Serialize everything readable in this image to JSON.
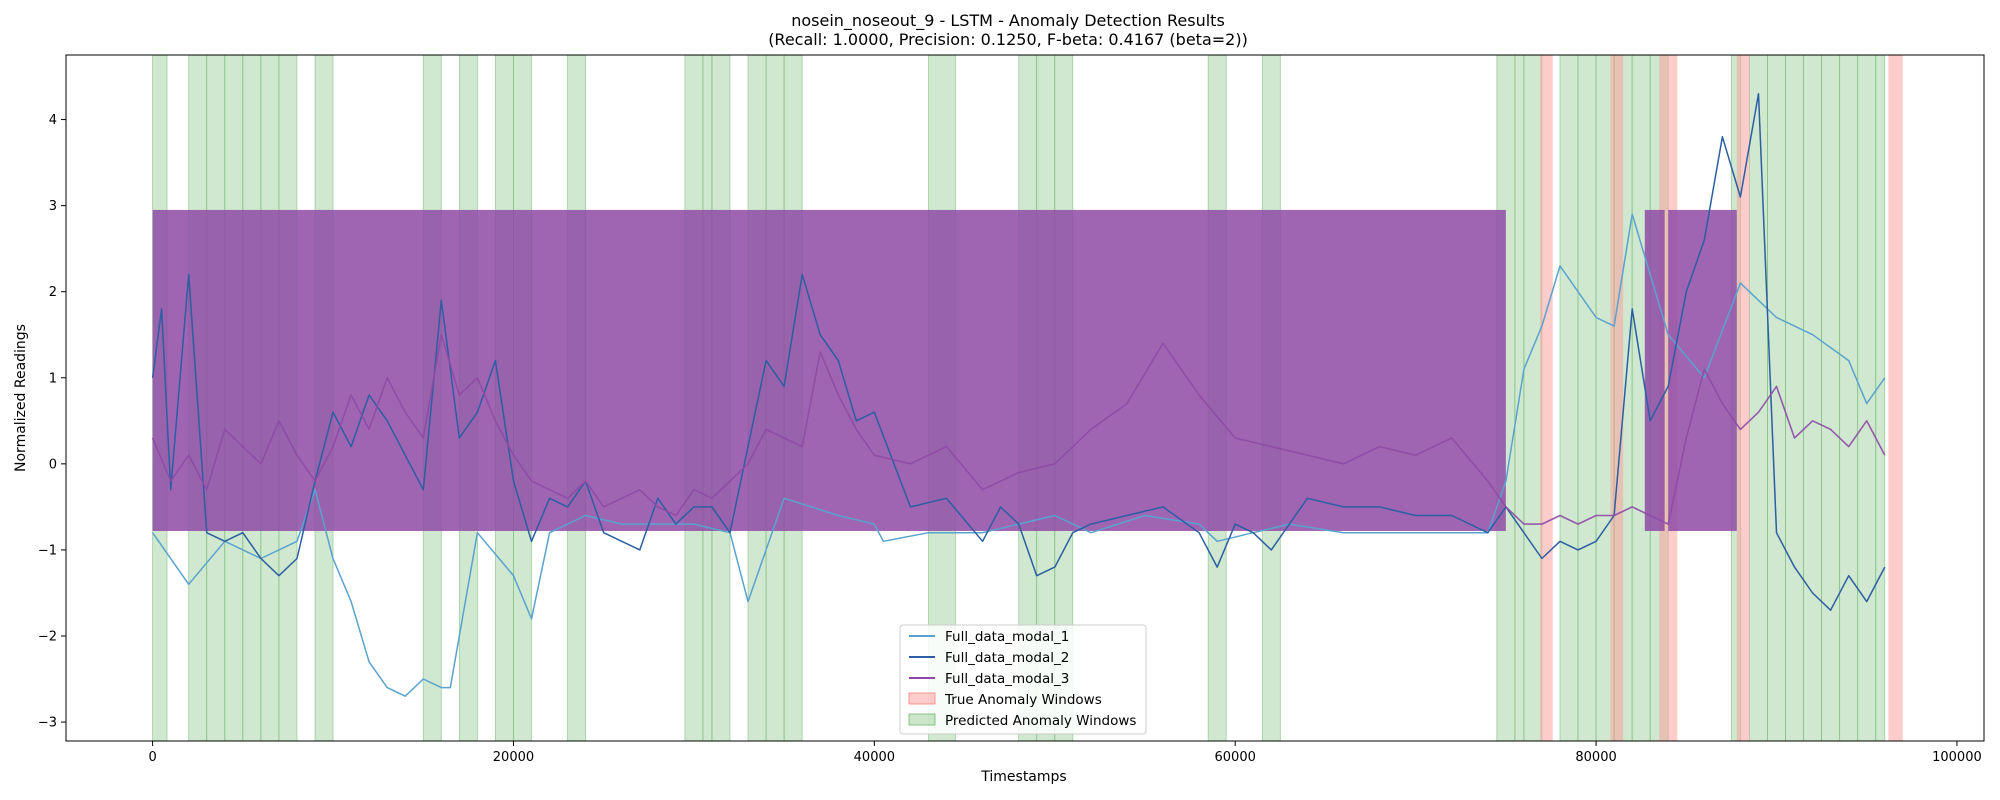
{
  "chart_data": {
    "type": "line",
    "title": "nosein_noseout_9 - LSTM - Anomaly Detection Results",
    "subtitle": "(Recall: 1.0000, Precision: 0.1250, F-beta: 0.4167 (beta=2))",
    "xlabel": "Timestamps",
    "ylabel": "Normalized Readings",
    "xlim": [
      -4800,
      101500
    ],
    "ylim": [
      -3.22,
      4.75
    ],
    "x_ticks": [
      0,
      20000,
      40000,
      60000,
      80000,
      100000
    ],
    "y_ticks": [
      -3,
      -2,
      -1,
      0,
      1,
      2,
      3,
      4
    ],
    "grid": false,
    "legend_placement": "lower-center",
    "colors": {
      "modal_1": "#5aa2cf",
      "modal_2": "#2b5ea2",
      "modal_3": "#8e4aa6",
      "true_window": "#ff9999",
      "pred_window": "#8cc78c"
    },
    "series": [
      {
        "name": "Full_data_modal_1",
        "x": [
          0,
          2000,
          4000,
          6000,
          8000,
          9000,
          10000,
          11000,
          12000,
          13000,
          14000,
          15000,
          16000,
          16500,
          18000,
          20000,
          21000,
          22000,
          24000,
          26000,
          28000,
          30000,
          32000,
          33000,
          35000,
          38000,
          40000,
          40500,
          43000,
          46000,
          48000,
          50000,
          52000,
          55000,
          58000,
          59000,
          61000,
          63000,
          66000,
          70000,
          74000,
          75000,
          76000,
          77000,
          78000,
          80000,
          81000,
          82000,
          84000,
          86000,
          88000,
          90000,
          92000,
          94000,
          95000,
          96000
        ],
        "y": [
          -0.8,
          -1.4,
          -0.9,
          -1.1,
          -0.9,
          -0.3,
          -1.1,
          -1.6,
          -2.3,
          -2.6,
          -2.7,
          -2.5,
          -2.6,
          -2.6,
          -0.8,
          -1.3,
          -1.8,
          -0.8,
          -0.6,
          -0.7,
          -0.7,
          -0.7,
          -0.8,
          -1.6,
          -0.4,
          -0.6,
          -0.7,
          -0.9,
          -0.8,
          -0.8,
          -0.7,
          -0.6,
          -0.8,
          -0.6,
          -0.7,
          -0.9,
          -0.8,
          -0.7,
          -0.8,
          -0.8,
          -0.8,
          -0.2,
          1.1,
          1.6,
          2.3,
          1.7,
          1.6,
          2.9,
          1.5,
          1.0,
          2.1,
          1.7,
          1.5,
          1.2,
          0.7,
          1.0
        ]
      },
      {
        "name": "Full_data_modal_2",
        "x": [
          0,
          500,
          1000,
          2000,
          3000,
          4000,
          5000,
          6000,
          7000,
          8000,
          9000,
          10000,
          11000,
          12000,
          13000,
          14000,
          15000,
          16000,
          17000,
          18000,
          19000,
          20000,
          21000,
          22000,
          23000,
          24000,
          25000,
          26000,
          27000,
          28000,
          29000,
          30000,
          31000,
          32000,
          33000,
          34000,
          35000,
          36000,
          37000,
          38000,
          39000,
          40000,
          42000,
          44000,
          46000,
          47000,
          48000,
          49000,
          50000,
          51000,
          52000,
          54000,
          56000,
          58000,
          59000,
          60000,
          61000,
          62000,
          64000,
          66000,
          68000,
          70000,
          72000,
          74000,
          75000,
          76000,
          77000,
          78000,
          79000,
          80000,
          81000,
          82000,
          83000,
          84000,
          85000,
          86000,
          87000,
          88000,
          89000,
          90000,
          91000,
          92000,
          93000,
          94000,
          95000,
          96000
        ],
        "y": [
          1.0,
          1.8,
          -0.3,
          2.2,
          -0.8,
          -0.9,
          -0.8,
          -1.1,
          -1.3,
          -1.1,
          -0.2,
          0.6,
          0.2,
          0.8,
          0.5,
          0.1,
          -0.3,
          1.9,
          0.3,
          0.6,
          1.2,
          -0.2,
          -0.9,
          -0.4,
          -0.5,
          -0.2,
          -0.8,
          -0.9,
          -1.0,
          -0.4,
          -0.7,
          -0.5,
          -0.5,
          -0.8,
          0.2,
          1.2,
          0.9,
          2.2,
          1.5,
          1.2,
          0.5,
          0.6,
          -0.5,
          -0.4,
          -0.9,
          -0.5,
          -0.7,
          -1.3,
          -1.2,
          -0.8,
          -0.7,
          -0.6,
          -0.5,
          -0.8,
          -1.2,
          -0.7,
          -0.8,
          -1.0,
          -0.4,
          -0.5,
          -0.5,
          -0.6,
          -0.6,
          -0.8,
          -0.5,
          -0.8,
          -1.1,
          -0.9,
          -1.0,
          -0.9,
          -0.6,
          1.8,
          0.5,
          0.9,
          2.0,
          2.6,
          3.8,
          3.1,
          4.3,
          -0.8,
          -1.2,
          -1.5,
          -1.7,
          -1.3,
          -1.6,
          -1.2
        ]
      },
      {
        "name": "Full_data_modal_3",
        "x": [
          0,
          1000,
          2000,
          3000,
          4000,
          5000,
          6000,
          7000,
          8000,
          9000,
          10000,
          11000,
          12000,
          13000,
          14000,
          15000,
          16000,
          17000,
          18000,
          19000,
          20000,
          21000,
          22000,
          23000,
          24000,
          25000,
          26000,
          27000,
          28000,
          29000,
          30000,
          31000,
          32000,
          33000,
          34000,
          35000,
          36000,
          37000,
          38000,
          39000,
          40000,
          42000,
          44000,
          46000,
          48000,
          50000,
          52000,
          54000,
          56000,
          58000,
          60000,
          62000,
          64000,
          66000,
          68000,
          70000,
          72000,
          74000,
          75000,
          76000,
          77000,
          78000,
          79000,
          80000,
          81000,
          82000,
          83000,
          84000,
          85000,
          86000,
          87000,
          88000,
          89000,
          90000,
          91000,
          92000,
          93000,
          94000,
          95000,
          96000
        ],
        "y": [
          0.3,
          -0.2,
          0.1,
          -0.3,
          0.4,
          0.2,
          0.0,
          0.5,
          0.1,
          -0.2,
          0.2,
          0.8,
          0.4,
          1.0,
          0.6,
          0.3,
          1.5,
          0.8,
          1.0,
          0.5,
          0.1,
          -0.2,
          -0.3,
          -0.4,
          -0.2,
          -0.5,
          -0.4,
          -0.3,
          -0.5,
          -0.6,
          -0.3,
          -0.4,
          -0.2,
          0.0,
          0.4,
          0.3,
          0.2,
          1.3,
          0.8,
          0.4,
          0.1,
          0.0,
          0.2,
          -0.3,
          -0.1,
          0.0,
          0.4,
          0.7,
          1.4,
          0.8,
          0.3,
          0.2,
          0.1,
          0.0,
          0.2,
          0.1,
          0.3,
          -0.2,
          -0.5,
          -0.7,
          -0.7,
          -0.6,
          -0.7,
          -0.6,
          -0.6,
          -0.5,
          -0.6,
          -0.7,
          0.3,
          1.1,
          0.7,
          0.4,
          0.6,
          0.9,
          0.3,
          0.5,
          0.4,
          0.2,
          0.5,
          0.1
        ],
        "band": {
          "low": -0.78,
          "high": 2.95,
          "spans": [
            [
              0,
              75000
            ],
            [
              82700,
              83800
            ],
            [
              84000,
              87800
            ]
          ]
        }
      }
    ],
    "true_anomaly_windows": [
      [
        76900,
        77600
      ],
      [
        80800,
        81500
      ],
      [
        83500,
        84100
      ],
      [
        84100,
        84500
      ],
      [
        87800,
        88500
      ],
      [
        96200,
        97000
      ]
    ],
    "predicted_anomaly_windows": [
      [
        0,
        800
      ],
      [
        2000,
        3000
      ],
      [
        3000,
        4000
      ],
      [
        4000,
        5000
      ],
      [
        5000,
        6000
      ],
      [
        6000,
        7000
      ],
      [
        7000,
        8000
      ],
      [
        9000,
        10000
      ],
      [
        15000,
        16000
      ],
      [
        17000,
        18000
      ],
      [
        19000,
        20000
      ],
      [
        20000,
        21000
      ],
      [
        23000,
        24000
      ],
      [
        29500,
        30500
      ],
      [
        30500,
        31000
      ],
      [
        31000,
        32000
      ],
      [
        33000,
        34000
      ],
      [
        34000,
        35000
      ],
      [
        35000,
        36000
      ],
      [
        43000,
        44500
      ],
      [
        48000,
        49000
      ],
      [
        49000,
        50000
      ],
      [
        50000,
        51000
      ],
      [
        58500,
        59500
      ],
      [
        61500,
        62500
      ],
      [
        74500,
        75500
      ],
      [
        75500,
        76000
      ],
      [
        76000,
        77000
      ],
      [
        78000,
        79000
      ],
      [
        79000,
        80000
      ],
      [
        80000,
        81000
      ],
      [
        81000,
        82000
      ],
      [
        82000,
        83000
      ],
      [
        83000,
        84000
      ],
      [
        87500,
        88000
      ],
      [
        88500,
        89500
      ],
      [
        89500,
        90500
      ],
      [
        90500,
        91500
      ],
      [
        91500,
        92500
      ],
      [
        92500,
        93500
      ],
      [
        93500,
        94500
      ],
      [
        94500,
        95500
      ],
      [
        95500,
        96000
      ]
    ],
    "legend": [
      {
        "key": "modal_1",
        "label": "Full_data_modal_1",
        "kind": "line"
      },
      {
        "key": "modal_2",
        "label": "Full_data_modal_2",
        "kind": "line"
      },
      {
        "key": "modal_3",
        "label": "Full_data_modal_3",
        "kind": "line"
      },
      {
        "key": "true_window",
        "label": "True Anomaly Windows",
        "kind": "patch"
      },
      {
        "key": "pred_window",
        "label": "Predicted Anomaly Windows",
        "kind": "patch"
      }
    ]
  }
}
